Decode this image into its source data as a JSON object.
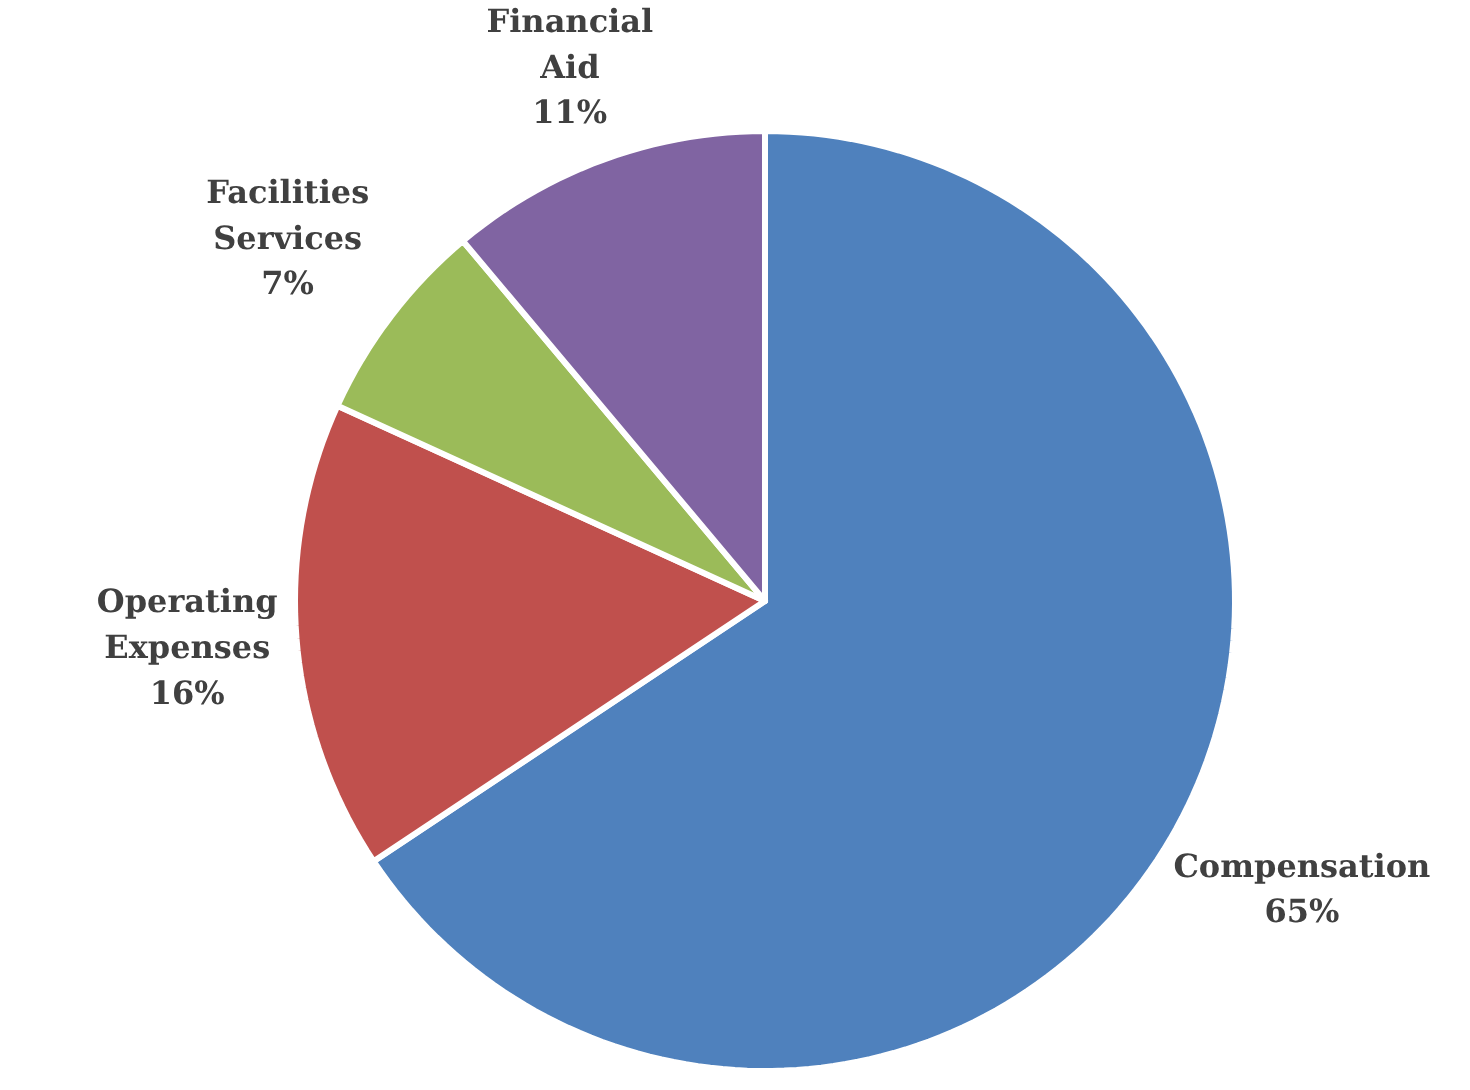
{
  "chart_data": {
    "type": "pie",
    "categories": [
      "Compensation",
      "Operating Expenses",
      "Facilities Services",
      "Financial Aid"
    ],
    "values": [
      65,
      16,
      7,
      11
    ],
    "value_labels": [
      "65%",
      "16%",
      "7%",
      "11%"
    ],
    "colors": [
      "#4f81bd",
      "#c0504d",
      "#9bbb59",
      "#8064a2"
    ],
    "legend": false
  }
}
